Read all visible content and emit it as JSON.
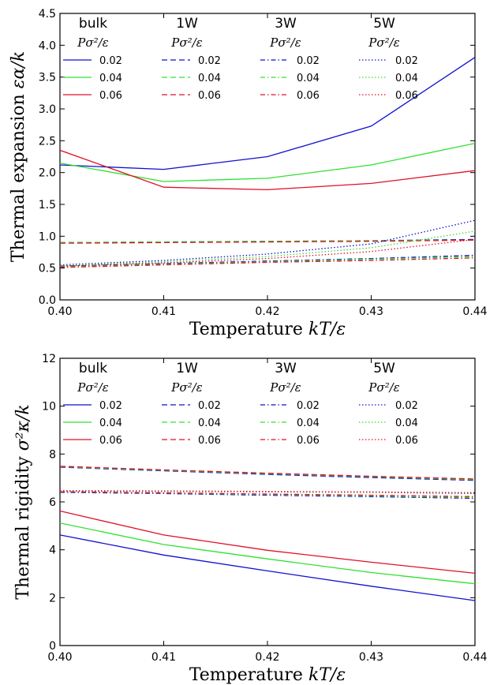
{
  "chart_data": [
    {
      "type": "line",
      "xlabel": "Temperature kT/ε",
      "ylabel": "Thermal expansion εα/k",
      "x": [
        0.4,
        0.41,
        0.42,
        0.43,
        0.44
      ],
      "xticks": [
        "0.40",
        "0.41",
        "0.42",
        "0.43",
        "0.44"
      ],
      "yticks": [
        "0.0",
        "0.5",
        "1.0",
        "1.5",
        "2.0",
        "2.5",
        "3.0",
        "3.5",
        "4.0",
        "4.5"
      ],
      "xlim": [
        0.4,
        0.44
      ],
      "ylim": [
        0,
        4.5
      ],
      "grid": false,
      "legend": "top",
      "legend_groups": [
        "bulk",
        "1W",
        "3W",
        "5W"
      ],
      "legend_subtitle": "Pσ²/ε",
      "legend_values": [
        "0.02",
        "0.04",
        "0.06"
      ],
      "series": [
        {
          "group": "bulk",
          "pressure": "0.02",
          "color": "#1010d0",
          "style": "solid",
          "values": [
            2.12,
            2.05,
            2.25,
            2.73,
            3.81
          ]
        },
        {
          "group": "bulk",
          "pressure": "0.04",
          "color": "#30e030",
          "style": "solid",
          "values": [
            2.15,
            1.86,
            1.91,
            2.12,
            2.46
          ]
        },
        {
          "group": "bulk",
          "pressure": "0.06",
          "color": "#e0102a",
          "style": "solid",
          "values": [
            2.35,
            1.77,
            1.73,
            1.83,
            2.03
          ]
        },
        {
          "group": "1W",
          "pressure": "0.02",
          "color": "#1010d0",
          "style": "dashed",
          "values": [
            0.9,
            0.91,
            0.92,
            0.93,
            0.95
          ]
        },
        {
          "group": "1W",
          "pressure": "0.04",
          "color": "#30e030",
          "style": "dashed",
          "values": [
            0.9,
            0.91,
            0.92,
            0.93,
            0.94
          ]
        },
        {
          "group": "1W",
          "pressure": "0.06",
          "color": "#e0102a",
          "style": "dashed",
          "values": [
            0.89,
            0.9,
            0.91,
            0.92,
            0.94
          ]
        },
        {
          "group": "3W",
          "pressure": "0.02",
          "color": "#1010d0",
          "style": "dashdot",
          "values": [
            0.53,
            0.57,
            0.61,
            0.65,
            0.7
          ]
        },
        {
          "group": "3W",
          "pressure": "0.04",
          "color": "#30e030",
          "style": "dashdot",
          "values": [
            0.52,
            0.56,
            0.6,
            0.64,
            0.68
          ]
        },
        {
          "group": "3W",
          "pressure": "0.06",
          "color": "#e0102a",
          "style": "dashdot",
          "values": [
            0.51,
            0.55,
            0.59,
            0.62,
            0.66
          ]
        },
        {
          "group": "5W",
          "pressure": "0.02",
          "color": "#1010d0",
          "style": "dotted",
          "values": [
            0.55,
            0.62,
            0.72,
            0.88,
            1.25
          ]
        },
        {
          "group": "5W",
          "pressure": "0.04",
          "color": "#30e030",
          "style": "dotted",
          "values": [
            0.54,
            0.6,
            0.68,
            0.82,
            1.08
          ]
        },
        {
          "group": "5W",
          "pressure": "0.06",
          "color": "#e0102a",
          "style": "dotted",
          "values": [
            0.53,
            0.58,
            0.65,
            0.76,
            0.95
          ]
        }
      ]
    },
    {
      "type": "line",
      "xlabel": "Temperature kT/ε",
      "ylabel": "Thermal rigidity σ²κ/k",
      "x": [
        0.4,
        0.41,
        0.42,
        0.43,
        0.44
      ],
      "xticks": [
        "0.40",
        "0.41",
        "0.42",
        "0.43",
        "0.44"
      ],
      "yticks": [
        "0",
        "2",
        "4",
        "6",
        "8",
        "10",
        "12"
      ],
      "xlim": [
        0.4,
        0.44
      ],
      "ylim": [
        0,
        12
      ],
      "grid": false,
      "legend": "top",
      "legend_groups": [
        "bulk",
        "1W",
        "3W",
        "5W"
      ],
      "legend_subtitle": "Pσ²/ε",
      "legend_values": [
        "0.02",
        "0.04",
        "0.06"
      ],
      "series": [
        {
          "group": "bulk",
          "pressure": "0.02",
          "color": "#1010d0",
          "style": "solid",
          "values": [
            4.62,
            3.78,
            3.12,
            2.48,
            1.88
          ]
        },
        {
          "group": "bulk",
          "pressure": "0.04",
          "color": "#30e030",
          "style": "solid",
          "values": [
            5.12,
            4.22,
            3.62,
            3.05,
            2.58
          ]
        },
        {
          "group": "bulk",
          "pressure": "0.06",
          "color": "#e0102a",
          "style": "solid",
          "values": [
            5.62,
            4.62,
            3.98,
            3.48,
            3.02
          ]
        },
        {
          "group": "1W",
          "pressure": "0.02",
          "color": "#1010d0",
          "style": "dashed",
          "values": [
            7.45,
            7.3,
            7.15,
            7.02,
            6.9
          ]
        },
        {
          "group": "1W",
          "pressure": "0.04",
          "color": "#30e030",
          "style": "dashed",
          "values": [
            7.47,
            7.32,
            7.18,
            7.05,
            6.93
          ]
        },
        {
          "group": "1W",
          "pressure": "0.06",
          "color": "#e0102a",
          "style": "dashed",
          "values": [
            7.49,
            7.34,
            7.2,
            7.07,
            6.96
          ]
        },
        {
          "group": "3W",
          "pressure": "0.02",
          "color": "#1010d0",
          "style": "dashdot",
          "values": [
            6.4,
            6.35,
            6.28,
            6.22,
            6.15
          ]
        },
        {
          "group": "3W",
          "pressure": "0.04",
          "color": "#30e030",
          "style": "dashdot",
          "values": [
            6.42,
            6.37,
            6.31,
            6.25,
            6.18
          ]
        },
        {
          "group": "3W",
          "pressure": "0.06",
          "color": "#e0102a",
          "style": "dashdot",
          "values": [
            6.43,
            6.38,
            6.33,
            6.28,
            6.22
          ]
        },
        {
          "group": "5W",
          "pressure": "0.02",
          "color": "#1010d0",
          "style": "dotted",
          "values": [
            6.45,
            6.44,
            6.42,
            6.4,
            6.35
          ]
        },
        {
          "group": "5W",
          "pressure": "0.04",
          "color": "#30e030",
          "style": "dotted",
          "values": [
            6.46,
            6.45,
            6.43,
            6.41,
            6.37
          ]
        },
        {
          "group": "5W",
          "pressure": "0.06",
          "color": "#e0102a",
          "style": "dotted",
          "values": [
            6.47,
            6.46,
            6.44,
            6.42,
            6.39
          ]
        }
      ]
    }
  ]
}
